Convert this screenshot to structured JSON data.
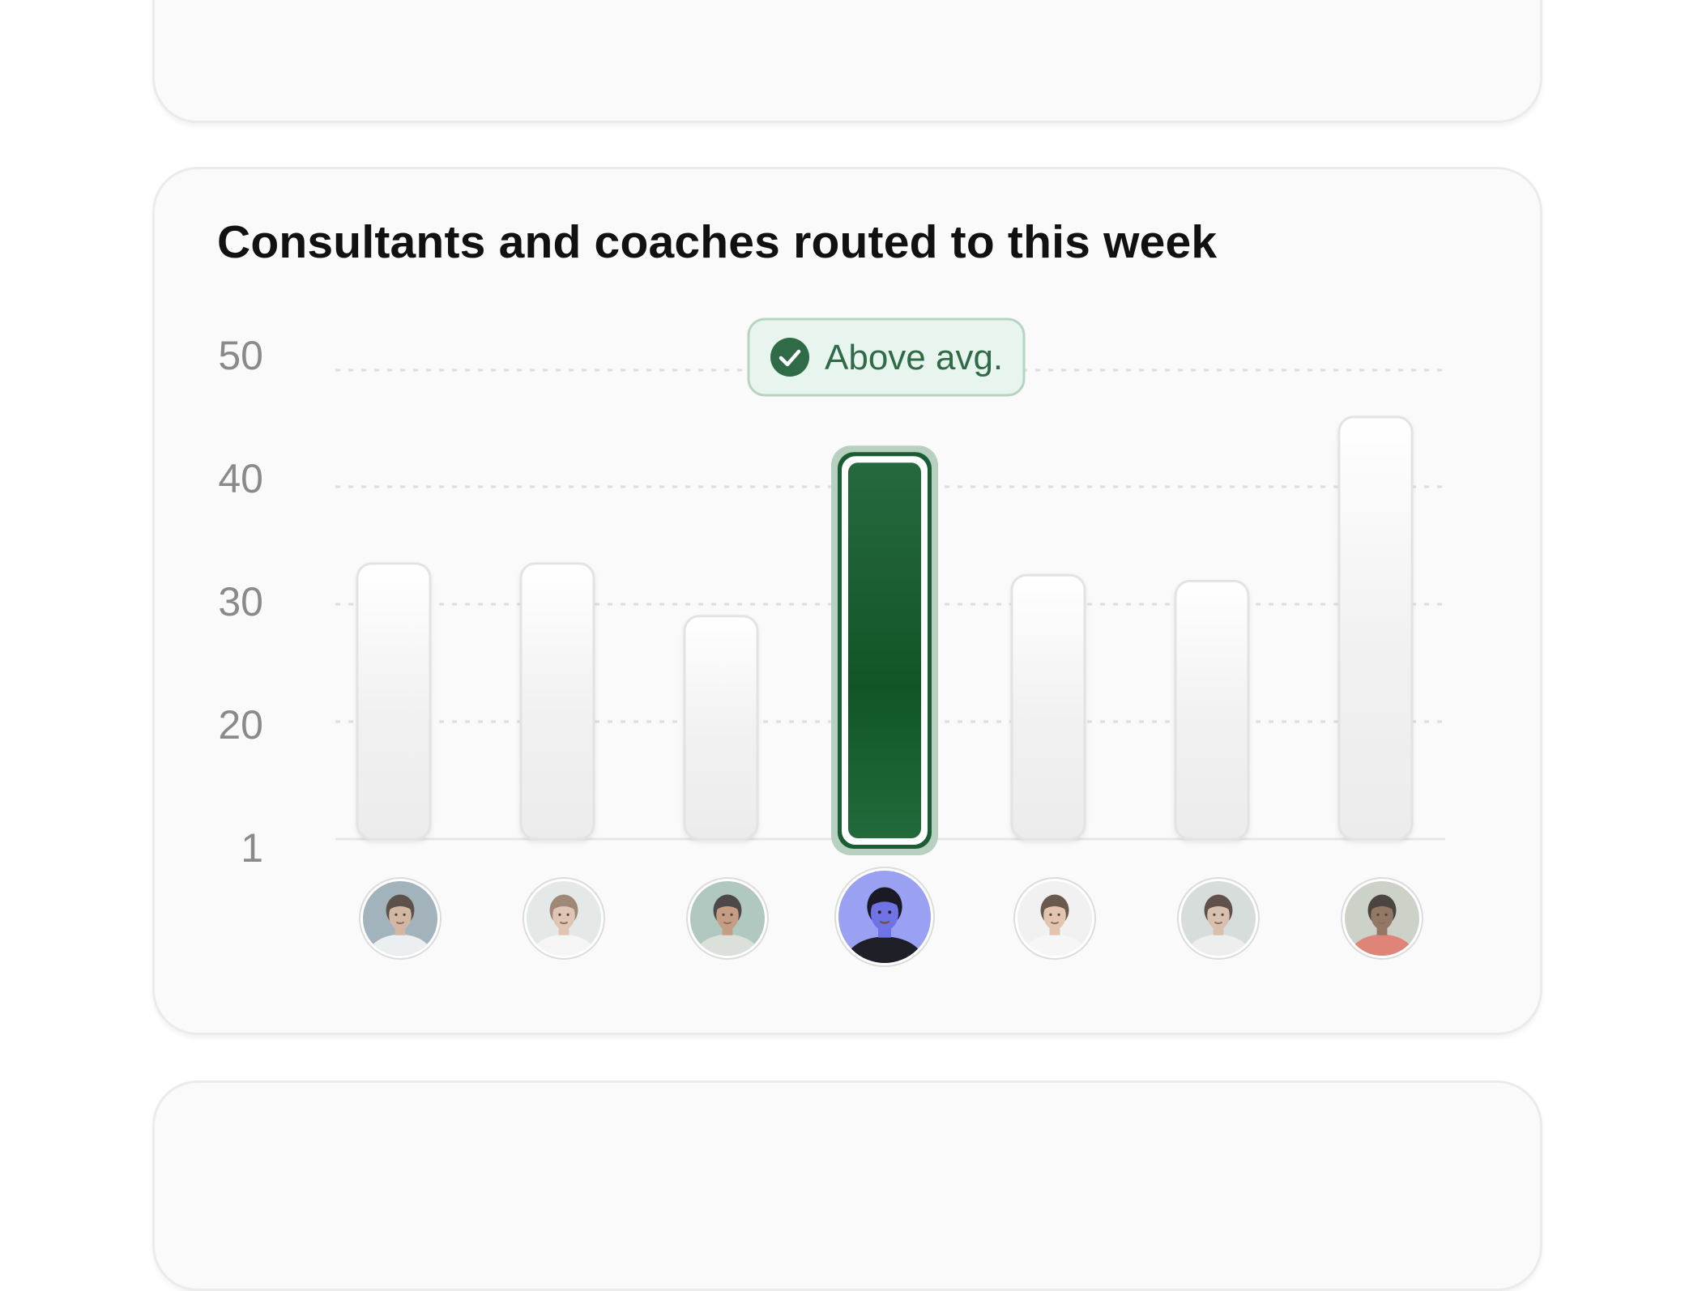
{
  "chart_data": {
    "type": "bar",
    "title": "Consultants and coaches routed to this week",
    "xlabel": "",
    "ylabel": "",
    "y_ticks": [
      "1",
      "20",
      "30",
      "40",
      "50"
    ],
    "ylim": [
      10,
      50
    ],
    "grid": true,
    "categories": [
      "avatar-1",
      "avatar-2",
      "avatar-3",
      "avatar-4",
      "avatar-5",
      "avatar-6",
      "avatar-7"
    ],
    "values": [
      33.5,
      33.5,
      29,
      43,
      32.5,
      32,
      46
    ],
    "highlight_index": 3,
    "annotation": {
      "text": "Above avg.",
      "icon": "check-circle-icon",
      "target_index": 3
    }
  },
  "colors": {
    "highlight": "#1f6a3a",
    "highlight_dark": "#124e28",
    "bar_light": "#f4f4f4",
    "badge_bg": "#e8f5ef",
    "badge_border": "#b7d4c3",
    "check_icon": "#2e6b46",
    "grid": "#dddddd",
    "tick_text": "#8a8a8a"
  },
  "avatars": [
    {
      "icon": "person-avatar-icon",
      "skin": "#c9a98e",
      "hair": "#3a2c23",
      "shirt": "#e8ecef",
      "bg": "#8fa3ae"
    },
    {
      "icon": "person-avatar-icon",
      "skin": "#d9b9a5",
      "hair": "#8b6e5a",
      "shirt": "#f3f3f3",
      "bg": "#dfe4e2"
    },
    {
      "icon": "person-avatar-icon",
      "skin": "#b98868",
      "hair": "#262220",
      "shirt": "#d5dad4",
      "bg": "#9fbcb1"
    },
    {
      "icon": "person-avatar-icon",
      "skin": "#6f73e6",
      "hair": "#1a1a26",
      "shirt": "#1f1f28",
      "bg": "#9aa0f2"
    },
    {
      "icon": "person-avatar-icon",
      "skin": "#dcb8a0",
      "hair": "#4a3527",
      "shirt": "#f5f5f5",
      "bg": "#eeeeee"
    },
    {
      "icon": "person-avatar-icon",
      "skin": "#cfb39d",
      "hair": "#3d2c24",
      "shirt": "#e9ecec",
      "bg": "#cfd6d3"
    },
    {
      "icon": "person-avatar-icon",
      "skin": "#7d5b45",
      "hair": "#241c18",
      "shirt": "#d86a5c",
      "bg": "#c3c8be"
    }
  ]
}
